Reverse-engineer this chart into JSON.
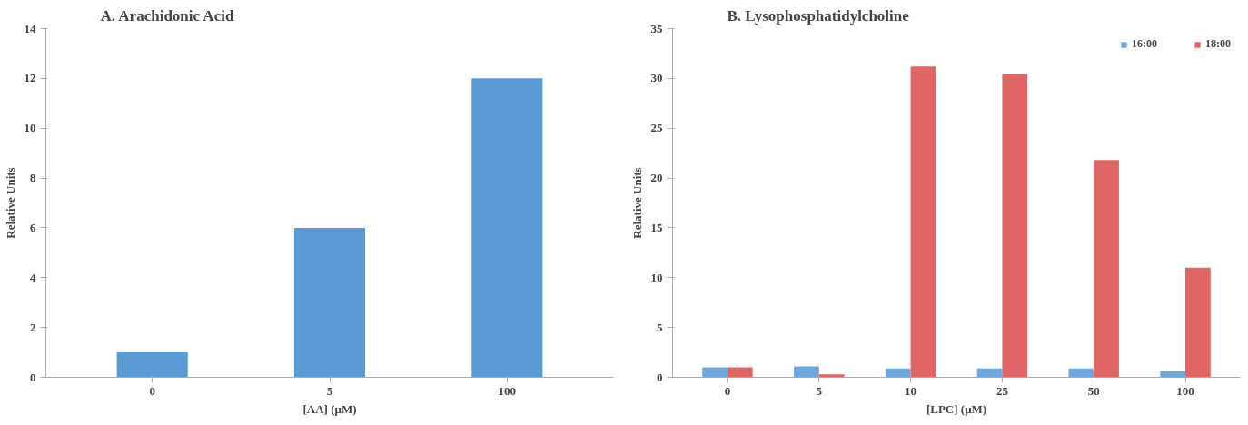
{
  "chart_data": [
    {
      "type": "bar",
      "title": "A.  Arachidonic Acid",
      "xlabel": "[AA] (μM)",
      "ylabel": "Relative Units",
      "categories": [
        "0",
        "5",
        "100"
      ],
      "series": [
        {
          "color": "#5b9bd5",
          "values": [
            1,
            6,
            12
          ]
        }
      ],
      "ylim": [
        0,
        14
      ],
      "yticks": [
        0,
        2,
        4,
        6,
        8,
        10,
        12,
        14
      ],
      "grid": false,
      "legend": false
    },
    {
      "type": "bar",
      "title": "B.  Lysophosphatidylcholine",
      "xlabel": "[LPC] (μM)",
      "ylabel": "Relative Units",
      "categories": [
        "0",
        "5",
        "10",
        "25",
        "50",
        "100"
      ],
      "series": [
        {
          "name": "16:00",
          "color": "#6fa8dc",
          "values": [
            1,
            1.1,
            0.9,
            0.9,
            0.9,
            0.6
          ]
        },
        {
          "name": "18:00",
          "color": "#e06666",
          "values": [
            1,
            0.3,
            31.2,
            30.4,
            21.8,
            11
          ]
        }
      ],
      "ylim": [
        0,
        35
      ],
      "yticks": [
        0,
        5,
        10,
        15,
        20,
        25,
        30,
        35
      ],
      "grid": false,
      "legend": "top right"
    }
  ]
}
